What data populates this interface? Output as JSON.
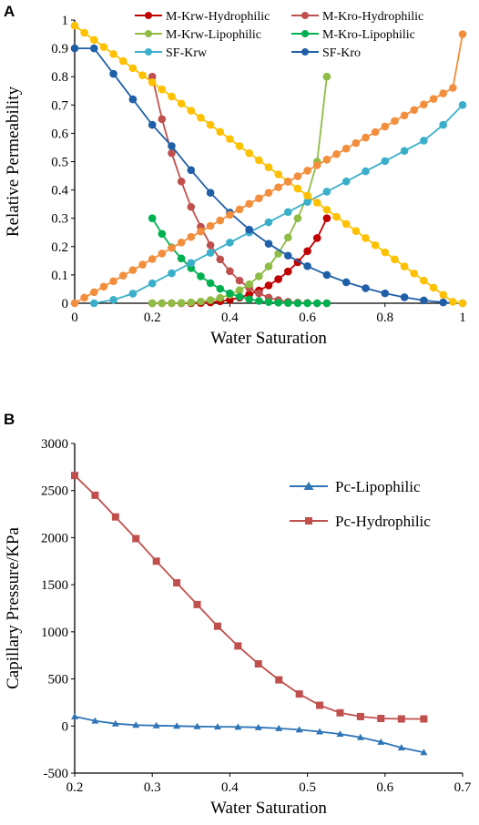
{
  "panels": [
    {
      "letter": "A"
    },
    {
      "letter": "B"
    }
  ],
  "chart_data": [
    {
      "type": "line",
      "xlabel": "Water Saturation",
      "ylabel": "Relative Permeability",
      "xlim": [
        0,
        1
      ],
      "ylim": [
        0,
        1
      ],
      "xticks": [
        0,
        0.2,
        0.4,
        0.6,
        0.8,
        1
      ],
      "yticks": [
        0,
        0.1,
        0.2,
        0.3,
        0.4,
        0.5,
        0.6,
        0.7,
        0.8,
        0.9,
        1
      ],
      "xtick_labels": [
        "0",
        "0.2",
        "0.4",
        "0.6",
        "0.8",
        "1"
      ],
      "ytick_labels": [
        "0",
        "0.1",
        "0.2",
        "0.3",
        "0.4",
        "0.5",
        "0.6",
        "0.7",
        "0.8",
        "0.9",
        "1"
      ],
      "grid": false,
      "legend_position": "top",
      "series": [
        {
          "name": "M-Krw-Hydrophilic",
          "color": "#c00000",
          "marker": "circle",
          "x": [
            0.2,
            0.225,
            0.25,
            0.275,
            0.3,
            0.325,
            0.35,
            0.375,
            0.4,
            0.425,
            0.45,
            0.475,
            0.5,
            0.525,
            0.55,
            0.575,
            0.6,
            0.625,
            0.65
          ],
          "y": [
            0,
            0,
            0,
            0,
            0,
            0.001,
            0.003,
            0.007,
            0.012,
            0.02,
            0.031,
            0.045,
            0.063,
            0.085,
            0.112,
            0.145,
            0.184,
            0.23,
            0.3
          ]
        },
        {
          "name": "M-Kro-Hydrophilic",
          "color": "#c0504d",
          "marker": "circle",
          "x": [
            0.2,
            0.225,
            0.25,
            0.275,
            0.3,
            0.325,
            0.35,
            0.375,
            0.4,
            0.425,
            0.45,
            0.475,
            0.5,
            0.525,
            0.55,
            0.575,
            0.6,
            0.625,
            0.65
          ],
          "y": [
            0.8,
            0.65,
            0.53,
            0.43,
            0.34,
            0.27,
            0.205,
            0.155,
            0.113,
            0.08,
            0.054,
            0.035,
            0.02,
            0.011,
            0.005,
            0.002,
            0.001,
            0,
            0
          ]
        },
        {
          "name": "M-Krw-Lipophilic",
          "color": "#8fbc45",
          "marker": "circle",
          "x": [
            0.2,
            0.225,
            0.25,
            0.275,
            0.3,
            0.325,
            0.35,
            0.375,
            0.4,
            0.425,
            0.45,
            0.475,
            0.5,
            0.525,
            0.55,
            0.575,
            0.6,
            0.625,
            0.65
          ],
          "y": [
            0,
            0,
            0,
            0.001,
            0.003,
            0.006,
            0.011,
            0.019,
            0.03,
            0.046,
            0.067,
            0.095,
            0.13,
            0.175,
            0.232,
            0.3,
            0.38,
            0.5,
            0.8
          ]
        },
        {
          "name": "M-Kro-Lipophilic",
          "color": "#00b050",
          "marker": "circle",
          "x": [
            0.2,
            0.225,
            0.25,
            0.275,
            0.3,
            0.325,
            0.35,
            0.375,
            0.4,
            0.425,
            0.45,
            0.475,
            0.5,
            0.525,
            0.55,
            0.575,
            0.6,
            0.625,
            0.65
          ],
          "y": [
            0.3,
            0.245,
            0.197,
            0.158,
            0.124,
            0.095,
            0.071,
            0.051,
            0.035,
            0.023,
            0.014,
            0.008,
            0.004,
            0.002,
            0.001,
            0,
            0,
            0,
            0
          ]
        },
        {
          "name": "SF-Krw",
          "color": "#3aafc9",
          "marker": "circle",
          "x": [
            0.05,
            0.1,
            0.15,
            0.2,
            0.25,
            0.3,
            0.35,
            0.4,
            0.45,
            0.5,
            0.55,
            0.6,
            0.65,
            0.7,
            0.75,
            0.8,
            0.85,
            0.9,
            0.95,
            1
          ],
          "y": [
            0,
            0.012,
            0.034,
            0.07,
            0.106,
            0.142,
            0.178,
            0.214,
            0.25,
            0.286,
            0.322,
            0.358,
            0.394,
            0.43,
            0.466,
            0.502,
            0.538,
            0.574,
            0.63,
            0.7
          ]
        },
        {
          "name": "SF-Kro",
          "color": "#1f5fa8",
          "marker": "circle",
          "x": [
            0,
            0.05,
            0.1,
            0.15,
            0.2,
            0.25,
            0.3,
            0.35,
            0.4,
            0.45,
            0.5,
            0.55,
            0.6,
            0.65,
            0.7,
            0.75,
            0.8,
            0.85,
            0.9,
            0.95,
            1
          ],
          "y": [
            0.9,
            0.9,
            0.81,
            0.72,
            0.63,
            0.555,
            0.47,
            0.39,
            0.32,
            0.26,
            0.21,
            0.168,
            0.131,
            0.1,
            0.074,
            0.053,
            0.035,
            0.021,
            0.01,
            0.003,
            0
          ]
        },
        {
          "name": "",
          "color": "#ffc000",
          "marker": "circle",
          "x": [
            0,
            0.025,
            0.05,
            0.075,
            0.1,
            0.125,
            0.15,
            0.175,
            0.2,
            0.225,
            0.25,
            0.275,
            0.3,
            0.325,
            0.35,
            0.375,
            0.4,
            0.425,
            0.45,
            0.475,
            0.5,
            0.525,
            0.55,
            0.575,
            0.6,
            0.625,
            0.65,
            0.675,
            0.7,
            0.725,
            0.75,
            0.775,
            0.8,
            0.825,
            0.85,
            0.875,
            0.9,
            0.925,
            0.95,
            0.975,
            1
          ],
          "y": [
            0.98,
            0.955,
            0.93,
            0.905,
            0.88,
            0.855,
            0.83,
            0.805,
            0.78,
            0.755,
            0.73,
            0.705,
            0.68,
            0.655,
            0.63,
            0.605,
            0.58,
            0.555,
            0.53,
            0.505,
            0.48,
            0.455,
            0.43,
            0.405,
            0.38,
            0.355,
            0.33,
            0.305,
            0.28,
            0.255,
            0.23,
            0.205,
            0.18,
            0.155,
            0.13,
            0.105,
            0.08,
            0.055,
            0.03,
            0.005,
            0
          ]
        },
        {
          "name": "",
          "color": "#f28e3c",
          "marker": "circle",
          "x": [
            0,
            0.025,
            0.05,
            0.075,
            0.1,
            0.125,
            0.15,
            0.175,
            0.2,
            0.225,
            0.25,
            0.275,
            0.3,
            0.325,
            0.35,
            0.375,
            0.4,
            0.425,
            0.45,
            0.475,
            0.5,
            0.525,
            0.55,
            0.575,
            0.6,
            0.625,
            0.65,
            0.675,
            0.7,
            0.725,
            0.75,
            0.775,
            0.8,
            0.825,
            0.85,
            0.875,
            0.9,
            0.925,
            0.95,
            0.975,
            1
          ],
          "y": [
            0,
            0.0195,
            0.039,
            0.0585,
            0.078,
            0.0975,
            0.117,
            0.1365,
            0.156,
            0.1755,
            0.195,
            0.2145,
            0.234,
            0.2535,
            0.273,
            0.2925,
            0.312,
            0.3315,
            0.351,
            0.3705,
            0.39,
            0.4095,
            0.429,
            0.4485,
            0.468,
            0.4875,
            0.507,
            0.5265,
            0.546,
            0.5655,
            0.585,
            0.6045,
            0.624,
            0.6435,
            0.663,
            0.6825,
            0.702,
            0.7215,
            0.741,
            0.7605,
            0.95
          ]
        }
      ]
    },
    {
      "type": "line",
      "xlabel": "Water Saturation",
      "ylabel": "Capillary Pressure/KPa",
      "xlim": [
        0.2,
        0.7
      ],
      "ylim": [
        -500,
        3000
      ],
      "xticks": [
        0.2,
        0.3,
        0.4,
        0.5,
        0.6,
        0.7
      ],
      "yticks": [
        -500,
        0,
        500,
        1000,
        1500,
        2000,
        2500,
        3000
      ],
      "xtick_labels": [
        "0.2",
        "0.3",
        "0.4",
        "0.5",
        "0.6",
        "0.7"
      ],
      "ytick_labels": [
        "-500",
        "0",
        "500",
        "1000",
        "1500",
        "2000",
        "2500",
        "3000"
      ],
      "grid": false,
      "legend_position": "right",
      "series": [
        {
          "name": "Pc-Lipophilic",
          "color": "#2e75b6",
          "marker": "triangle",
          "x": [
            0.2,
            0.2263,
            0.2526,
            0.2789,
            0.3053,
            0.3316,
            0.3579,
            0.3842,
            0.4105,
            0.4368,
            0.4632,
            0.4895,
            0.5158,
            0.5421,
            0.5684,
            0.5947,
            0.6211,
            0.65
          ],
          "y": [
            100,
            55,
            25,
            10,
            5,
            0,
            -5,
            -8,
            -10,
            -15,
            -25,
            -40,
            -60,
            -85,
            -120,
            -170,
            -230,
            -280
          ]
        },
        {
          "name": "Pc-Hydrophilic",
          "color": "#c0504d",
          "marker": "square",
          "x": [
            0.2,
            0.2263,
            0.2526,
            0.2789,
            0.3053,
            0.3316,
            0.3579,
            0.3842,
            0.4105,
            0.4368,
            0.4632,
            0.4895,
            0.5158,
            0.5421,
            0.5684,
            0.5947,
            0.6211,
            0.65
          ],
          "y": [
            2660,
            2450,
            2220,
            1990,
            1750,
            1520,
            1290,
            1060,
            850,
            660,
            490,
            340,
            220,
            140,
            100,
            80,
            75,
            75
          ]
        }
      ]
    }
  ]
}
